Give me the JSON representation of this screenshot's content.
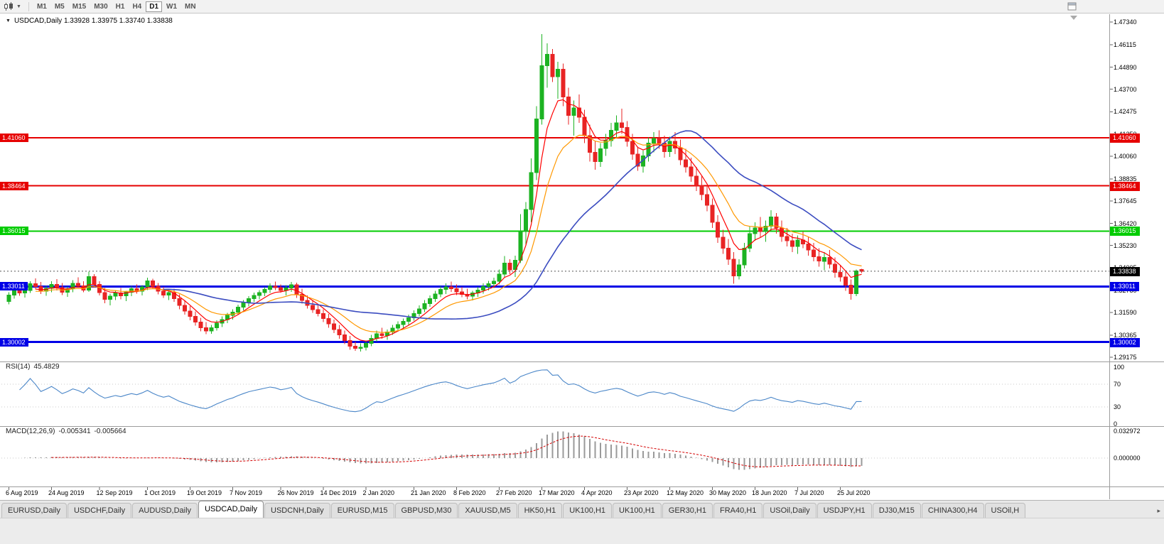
{
  "toolbar": {
    "timeframes": [
      {
        "label": "M1",
        "active": false
      },
      {
        "label": "M5",
        "active": false
      },
      {
        "label": "M15",
        "active": false
      },
      {
        "label": "M30",
        "active": false
      },
      {
        "label": "H1",
        "active": false
      },
      {
        "label": "H4",
        "active": false
      },
      {
        "label": "D1",
        "active": true
      },
      {
        "label": "W1",
        "active": false
      },
      {
        "label": "MN",
        "active": false
      }
    ],
    "icons": {
      "left": [
        "candlestick-chart-icon",
        "dropdown-caret-icon"
      ],
      "right": "window-icon"
    }
  },
  "chart": {
    "title": "USDCAD,Daily 1.33928 1.33975 1.33740 1.33838",
    "symbol": "USDCAD",
    "period": "Daily",
    "open": "1.33928",
    "high": "1.33975",
    "low": "1.33740",
    "close": "1.33838"
  },
  "price_axis": {
    "labels": [
      "1.47340",
      "1.46115",
      "1.44890",
      "1.43700",
      "1.42475",
      "1.41250",
      "1.40060",
      "1.38835",
      "1.37645",
      "1.36420",
      "1.35230",
      "1.34005",
      "1.32780",
      "1.31590",
      "1.30365",
      "1.29175"
    ]
  },
  "price_lines": [
    {
      "label": "1.41060",
      "price": 1.4106,
      "color": "#e60000",
      "width": 2
    },
    {
      "label": "1.38464",
      "price": 1.38464,
      "color": "#e60000",
      "width": 2
    },
    {
      "label": "1.36015",
      "price": 1.36015,
      "color": "#00cc00",
      "width": 2
    },
    {
      "label": "1.33011",
      "price": 1.33011,
      "color": "#0000e6",
      "width": 3
    },
    {
      "label": "1.30002",
      "price": 1.30002,
      "color": "#0000e6",
      "width": 3
    }
  ],
  "current_price": {
    "label": "1.33838",
    "price": 1.33838,
    "color": "#000000"
  },
  "rsi": {
    "name": "RSI(14)",
    "value": "45.4829",
    "axis_labels": [
      "100",
      "70",
      "30",
      "0"
    ],
    "levels": [
      70,
      30
    ],
    "color": "#4a86c8"
  },
  "macd": {
    "name": "MACD(12,26,9)",
    "value": "-0.005341",
    "signal_value": "-0.005664",
    "axis_labels": [
      "0.032972",
      "0.000000"
    ],
    "range": 0.032972,
    "hist_color": "#9a9a9a",
    "signal_color": "#d40000"
  },
  "date_axis": [
    {
      "text": "6 Aug 2019",
      "i": 0
    },
    {
      "text": "24 Aug 2019",
      "i": 8
    },
    {
      "text": "12 Sep 2019",
      "i": 17
    },
    {
      "text": "1 Oct 2019",
      "i": 26
    },
    {
      "text": "19 Oct 2019",
      "i": 34
    },
    {
      "text": "7 Nov 2019",
      "i": 42
    },
    {
      "text": "26 Nov 2019",
      "i": 51
    },
    {
      "text": "14 Dec 2019",
      "i": 59
    },
    {
      "text": "2 Jan 2020",
      "i": 67
    },
    {
      "text": "21 Jan 2020",
      "i": 76
    },
    {
      "text": "8 Feb 2020",
      "i": 84
    },
    {
      "text": "27 Feb 2020",
      "i": 92
    },
    {
      "text": "17 Mar 2020",
      "i": 100
    },
    {
      "text": "4 Apr 2020",
      "i": 108
    },
    {
      "text": "23 Apr 2020",
      "i": 116
    },
    {
      "text": "12 May 2020",
      "i": 124
    },
    {
      "text": "30 May 2020",
      "i": 132
    },
    {
      "text": "18 Jun 2020",
      "i": 140
    },
    {
      "text": "7 Jul 2020",
      "i": 148
    },
    {
      "text": "25 Jul 2020",
      "i": 156
    }
  ],
  "tabs": [
    {
      "label": "EURUSD,Daily",
      "active": false
    },
    {
      "label": "USDCHF,Daily",
      "active": false
    },
    {
      "label": "AUDUSD,Daily",
      "active": false
    },
    {
      "label": "USDCAD,Daily",
      "active": true
    },
    {
      "label": "USDCNH,Daily",
      "active": false
    },
    {
      "label": "EURUSD,M15",
      "active": false
    },
    {
      "label": "GBPUSD,M30",
      "active": false
    },
    {
      "label": "XAUUSD,M5",
      "active": false
    },
    {
      "label": "HK50,H1",
      "active": false
    },
    {
      "label": "UK100,H1",
      "active": false
    },
    {
      "label": "UK100,H1",
      "active": false
    },
    {
      "label": "GER30,H1",
      "active": false
    },
    {
      "label": "FRA40,H1",
      "active": false
    },
    {
      "label": "USOil,Daily",
      "active": false
    },
    {
      "label": "USDJPY,H1",
      "active": false
    },
    {
      "label": "DJ30,M15",
      "active": false
    },
    {
      "label": "CHINA300,H4",
      "active": false
    },
    {
      "label": "USOil,H",
      "active": false
    }
  ],
  "colors": {
    "bull": "#1cb322",
    "bear": "#e82424",
    "background": "#ffffff",
    "axis_text": "#000000"
  },
  "chart_data": {
    "type": "candlestick",
    "title": "USDCAD,Daily",
    "symbol": "USDCAD",
    "timeframe": "Daily",
    "y_range": [
      1.29175,
      1.4734
    ],
    "x_labels": [
      "6 Aug 2019",
      "24 Aug 2019",
      "12 Sep 2019",
      "1 Oct 2019",
      "19 Oct 2019",
      "7 Nov 2019",
      "26 Nov 2019",
      "14 Dec 2019",
      "2 Jan 2020",
      "21 Jan 2020",
      "8 Feb 2020",
      "27 Feb 2020",
      "17 Mar 2020",
      "4 Apr 2020",
      "23 Apr 2020",
      "12 May 2020",
      "30 May 2020",
      "18 Jun 2020",
      "7 Jul 2020",
      "25 Jul 2020"
    ],
    "ohlc_format": [
      "open",
      "high",
      "low",
      "close"
    ],
    "candles": [
      [
        1.322,
        1.327,
        1.3205,
        1.3255
      ],
      [
        1.3255,
        1.33,
        1.3235,
        1.3285
      ],
      [
        1.3285,
        1.331,
        1.325,
        1.3265
      ],
      [
        1.3265,
        1.3295,
        1.324,
        1.328
      ],
      [
        1.328,
        1.333,
        1.3265,
        1.3315
      ],
      [
        1.3315,
        1.3345,
        1.3285,
        1.33
      ],
      [
        1.33,
        1.3325,
        1.326,
        1.3275
      ],
      [
        1.3275,
        1.3305,
        1.325,
        1.329
      ],
      [
        1.329,
        1.333,
        1.327,
        1.3312
      ],
      [
        1.3312,
        1.334,
        1.328,
        1.3295
      ],
      [
        1.3295,
        1.332,
        1.3255,
        1.327
      ],
      [
        1.327,
        1.33,
        1.3245,
        1.3288
      ],
      [
        1.3288,
        1.3335,
        1.327,
        1.3318
      ],
      [
        1.3318,
        1.335,
        1.3295,
        1.3305
      ],
      [
        1.3305,
        1.333,
        1.327,
        1.3282
      ],
      [
        1.3282,
        1.3382,
        1.3272,
        1.3355
      ],
      [
        1.3355,
        1.3368,
        1.3295,
        1.3312
      ],
      [
        1.3312,
        1.333,
        1.3252,
        1.3268
      ],
      [
        1.3268,
        1.3292,
        1.321,
        1.3232
      ],
      [
        1.3232,
        1.3262,
        1.3198,
        1.3248
      ],
      [
        1.3248,
        1.3282,
        1.3228,
        1.3265
      ],
      [
        1.3265,
        1.3292,
        1.3232,
        1.325
      ],
      [
        1.325,
        1.3278,
        1.3222,
        1.327
      ],
      [
        1.327,
        1.3302,
        1.3248,
        1.3288
      ],
      [
        1.3288,
        1.3312,
        1.3262,
        1.3275
      ],
      [
        1.3275,
        1.3308,
        1.3252,
        1.3298
      ],
      [
        1.3298,
        1.3348,
        1.3282,
        1.3332
      ],
      [
        1.3332,
        1.3342,
        1.3288,
        1.3302
      ],
      [
        1.3302,
        1.332,
        1.3258,
        1.3275
      ],
      [
        1.3275,
        1.3298,
        1.3238,
        1.3255
      ],
      [
        1.3255,
        1.3285,
        1.3228,
        1.3268
      ],
      [
        1.3268,
        1.3288,
        1.3218,
        1.3235
      ],
      [
        1.3235,
        1.3258,
        1.3178,
        1.3198
      ],
      [
        1.3198,
        1.3228,
        1.3148,
        1.3168
      ],
      [
        1.3168,
        1.3195,
        1.3118,
        1.3138
      ],
      [
        1.3138,
        1.3165,
        1.3088,
        1.3108
      ],
      [
        1.3108,
        1.3132,
        1.3058,
        1.3078
      ],
      [
        1.3078,
        1.3108,
        1.3042,
        1.306
      ],
      [
        1.306,
        1.3092,
        1.3045,
        1.3078
      ],
      [
        1.3078,
        1.3118,
        1.3062,
        1.3102
      ],
      [
        1.3102,
        1.3138,
        1.3082,
        1.3122
      ],
      [
        1.3122,
        1.3158,
        1.3102,
        1.3145
      ],
      [
        1.3145,
        1.3178,
        1.3122,
        1.3162
      ],
      [
        1.3162,
        1.3202,
        1.3148,
        1.3188
      ],
      [
        1.3188,
        1.3228,
        1.3172,
        1.3212
      ],
      [
        1.3212,
        1.3248,
        1.3192,
        1.3235
      ],
      [
        1.3235,
        1.3268,
        1.3218,
        1.3252
      ],
      [
        1.3252,
        1.3282,
        1.3232,
        1.3268
      ],
      [
        1.3268,
        1.3298,
        1.3248,
        1.3285
      ],
      [
        1.3285,
        1.3318,
        1.3265,
        1.3302
      ],
      [
        1.3302,
        1.3328,
        1.3282,
        1.3295
      ],
      [
        1.3295,
        1.3312,
        1.3268,
        1.328
      ],
      [
        1.328,
        1.3308,
        1.3252,
        1.3292
      ],
      [
        1.3292,
        1.3325,
        1.3272,
        1.331
      ],
      [
        1.331,
        1.3322,
        1.3238,
        1.3258
      ],
      [
        1.3258,
        1.3288,
        1.3208,
        1.3225
      ],
      [
        1.3225,
        1.3252,
        1.3182,
        1.3198
      ],
      [
        1.3198,
        1.3228,
        1.3158,
        1.3175
      ],
      [
        1.3175,
        1.3202,
        1.3138,
        1.3155
      ],
      [
        1.3155,
        1.3178,
        1.3108,
        1.3128
      ],
      [
        1.3128,
        1.3152,
        1.3078,
        1.3098
      ],
      [
        1.3098,
        1.3122,
        1.3048,
        1.3068
      ],
      [
        1.3068,
        1.3092,
        1.3018,
        1.3038
      ],
      [
        1.3038,
        1.3062,
        1.2988,
        1.3008
      ],
      [
        1.3008,
        1.3032,
        1.2958,
        1.2978
      ],
      [
        1.2978,
        1.3002,
        1.2952,
        1.2965
      ],
      [
        1.2965,
        1.2992,
        1.2948,
        1.2972
      ],
      [
        1.2972,
        1.3008,
        1.2955,
        1.2992
      ],
      [
        1.2992,
        1.3038,
        1.2978,
        1.302
      ],
      [
        1.302,
        1.3062,
        1.3002,
        1.3045
      ],
      [
        1.3045,
        1.3078,
        1.3018,
        1.3035
      ],
      [
        1.3035,
        1.3068,
        1.3012,
        1.3055
      ],
      [
        1.3055,
        1.3092,
        1.3038,
        1.3075
      ],
      [
        1.3075,
        1.3112,
        1.3058,
        1.3095
      ],
      [
        1.3095,
        1.3128,
        1.3075,
        1.3112
      ],
      [
        1.3112,
        1.3148,
        1.3092,
        1.3132
      ],
      [
        1.3132,
        1.3172,
        1.3115,
        1.3155
      ],
      [
        1.3155,
        1.3198,
        1.3138,
        1.318
      ],
      [
        1.318,
        1.3228,
        1.3162,
        1.3208
      ],
      [
        1.3208,
        1.3252,
        1.319,
        1.3235
      ],
      [
        1.3235,
        1.3278,
        1.3218,
        1.326
      ],
      [
        1.326,
        1.3302,
        1.3242,
        1.3285
      ],
      [
        1.3285,
        1.3318,
        1.326,
        1.3298
      ],
      [
        1.3298,
        1.3328,
        1.3272,
        1.3288
      ],
      [
        1.3288,
        1.3312,
        1.3255,
        1.3272
      ],
      [
        1.3272,
        1.3298,
        1.3242,
        1.3258
      ],
      [
        1.3258,
        1.3288,
        1.3232,
        1.3248
      ],
      [
        1.3248,
        1.3278,
        1.3225,
        1.3265
      ],
      [
        1.3265,
        1.3298,
        1.3245,
        1.3282
      ],
      [
        1.3282,
        1.3318,
        1.3262,
        1.33
      ],
      [
        1.33,
        1.3332,
        1.328,
        1.3315
      ],
      [
        1.3315,
        1.3348,
        1.3292,
        1.333
      ],
      [
        1.333,
        1.3392,
        1.3312,
        1.3368
      ],
      [
        1.3368,
        1.3465,
        1.3348,
        1.3428
      ],
      [
        1.3428,
        1.3448,
        1.3368,
        1.3392
      ],
      [
        1.3392,
        1.3468,
        1.3352,
        1.3442
      ],
      [
        1.3442,
        1.3693,
        1.3428,
        1.3598
      ],
      [
        1.3598,
        1.3758,
        1.3528,
        1.3718
      ],
      [
        1.3718,
        1.3995,
        1.3648,
        1.3918
      ],
      [
        1.3918,
        1.4278,
        1.3878,
        1.4208
      ],
      [
        1.4208,
        1.4668,
        1.4178,
        1.4498
      ],
      [
        1.4498,
        1.4618,
        1.4378,
        1.4558
      ],
      [
        1.4558,
        1.4588,
        1.4408,
        1.4438
      ],
      [
        1.4438,
        1.4518,
        1.4318,
        1.4478
      ],
      [
        1.4478,
        1.4508,
        1.4278,
        1.4328
      ],
      [
        1.4328,
        1.4378,
        1.4178,
        1.4228
      ],
      [
        1.4228,
        1.4308,
        1.4118,
        1.4268
      ],
      [
        1.4268,
        1.4342,
        1.4188,
        1.4218
      ],
      [
        1.4218,
        1.4258,
        1.4078,
        1.4118
      ],
      [
        1.4118,
        1.4178,
        1.3978,
        1.4028
      ],
      [
        1.4028,
        1.4088,
        1.3934,
        1.3978
      ],
      [
        1.3978,
        1.4078,
        1.3948,
        1.4048
      ],
      [
        1.4048,
        1.4128,
        1.4008,
        1.4092
      ],
      [
        1.4092,
        1.4188,
        1.4058,
        1.4148
      ],
      [
        1.4148,
        1.4228,
        1.4108,
        1.4188
      ],
      [
        1.4188,
        1.4265,
        1.4128,
        1.4162
      ],
      [
        1.4162,
        1.4198,
        1.4058,
        1.4088
      ],
      [
        1.4088,
        1.4128,
        1.3988,
        1.4018
      ],
      [
        1.4018,
        1.4058,
        1.3928,
        1.3952
      ],
      [
        1.3952,
        1.4038,
        1.3918,
        1.4008
      ],
      [
        1.4008,
        1.4108,
        1.3978,
        1.4078
      ],
      [
        1.4078,
        1.4138,
        1.4028,
        1.4102
      ],
      [
        1.4102,
        1.4148,
        1.4048,
        1.4078
      ],
      [
        1.4078,
        1.4118,
        1.3998,
        1.4032
      ],
      [
        1.4032,
        1.4112,
        1.4002,
        1.4088
      ],
      [
        1.4088,
        1.4138,
        1.4018,
        1.4052
      ],
      [
        1.4052,
        1.4098,
        1.3958,
        1.3988
      ],
      [
        1.3988,
        1.4048,
        1.3918,
        1.3948
      ],
      [
        1.3948,
        1.3998,
        1.3868,
        1.3898
      ],
      [
        1.3898,
        1.3948,
        1.3818,
        1.3848
      ],
      [
        1.3848,
        1.3898,
        1.3768,
        1.3798
      ],
      [
        1.3798,
        1.3848,
        1.3708,
        1.3742
      ],
      [
        1.3742,
        1.3778,
        1.3618,
        1.3648
      ],
      [
        1.3648,
        1.3688,
        1.3538,
        1.3568
      ],
      [
        1.3568,
        1.3608,
        1.3478,
        1.3508
      ],
      [
        1.3508,
        1.3558,
        1.3418,
        1.3448
      ],
      [
        1.3448,
        1.3488,
        1.3315,
        1.3358
      ],
      [
        1.3358,
        1.3448,
        1.3338,
        1.3418
      ],
      [
        1.3418,
        1.3538,
        1.3398,
        1.3508
      ],
      [
        1.3508,
        1.3628,
        1.3488,
        1.3588
      ],
      [
        1.3588,
        1.3648,
        1.3548,
        1.3618
      ],
      [
        1.3618,
        1.3678,
        1.3568,
        1.3598
      ],
      [
        1.3598,
        1.3658,
        1.3542,
        1.3628
      ],
      [
        1.3628,
        1.3715,
        1.3598,
        1.3678
      ],
      [
        1.3678,
        1.3698,
        1.3588,
        1.3618
      ],
      [
        1.3618,
        1.3658,
        1.3542,
        1.3572
      ],
      [
        1.3572,
        1.3618,
        1.3518,
        1.3548
      ],
      [
        1.3548,
        1.3588,
        1.3488,
        1.3518
      ],
      [
        1.3518,
        1.3578,
        1.3478,
        1.3552
      ],
      [
        1.3552,
        1.3598,
        1.3508,
        1.3532
      ],
      [
        1.3532,
        1.3568,
        1.3468,
        1.3498
      ],
      [
        1.3498,
        1.3538,
        1.3438,
        1.3462
      ],
      [
        1.3462,
        1.3508,
        1.3408,
        1.3438
      ],
      [
        1.3438,
        1.3488,
        1.3388,
        1.3458
      ],
      [
        1.3458,
        1.3498,
        1.3398,
        1.3422
      ],
      [
        1.3422,
        1.3458,
        1.3348,
        1.3378
      ],
      [
        1.3378,
        1.3418,
        1.3328,
        1.3352
      ],
      [
        1.3352,
        1.3388,
        1.3278,
        1.3308
      ],
      [
        1.3308,
        1.3338,
        1.323,
        1.3262
      ],
      [
        1.3262,
        1.3392,
        1.3248,
        1.3385
      ],
      [
        1.33928,
        1.33975,
        1.3374,
        1.33838
      ]
    ],
    "moving_averages": [
      {
        "type": "ema",
        "period": 6,
        "color": "#ff0000",
        "width": 1.2
      },
      {
        "type": "ema",
        "period": 13,
        "color": "#ff9800",
        "width": 1.2
      },
      {
        "type": "sma",
        "period": 30,
        "color": "#3b4cc0",
        "width": 1.6
      }
    ],
    "horizontal_lines": [
      1.4106,
      1.38464,
      1.36015,
      1.33011,
      1.30002
    ],
    "rsi": {
      "period": 14,
      "current": 45.4829
    },
    "macd": {
      "fast": 12,
      "slow": 26,
      "signal": 9,
      "value": -0.005341,
      "signal_value": -0.005664
    }
  }
}
